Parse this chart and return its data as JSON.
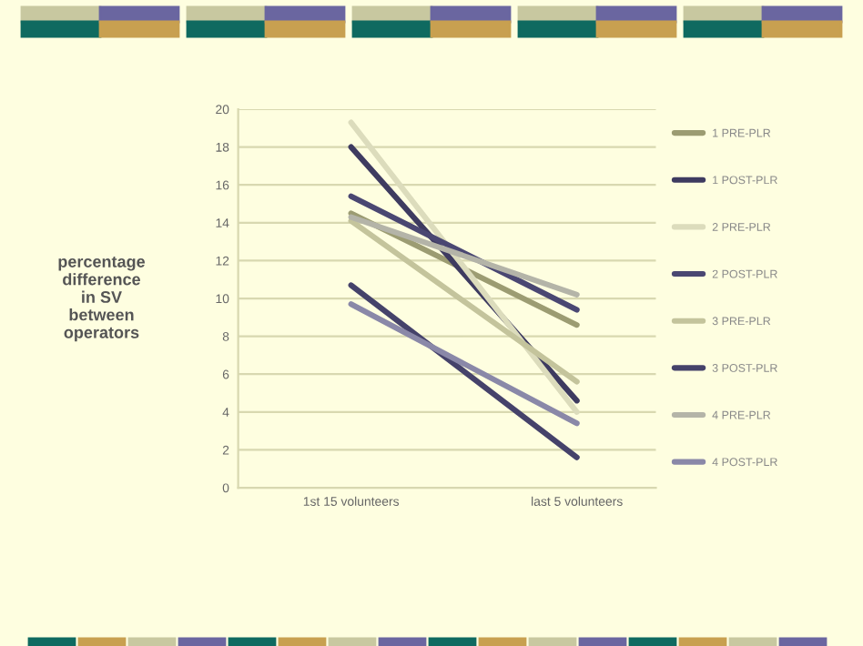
{
  "chart_data": {
    "type": "line",
    "ylabel": "percentage\ndifference\nin SV\nbetween\noperators",
    "categories": [
      "1st 15 volunteers",
      "last 5 volunteers"
    ],
    "series": [
      {
        "name": "1 PRE-PLR",
        "color": "#9c9c72",
        "values": [
          14.5,
          8.6
        ]
      },
      {
        "name": "1 POST-PLR",
        "color": "#3e3b60",
        "values": [
          18.0,
          4.6
        ]
      },
      {
        "name": "2 PRE-PLR",
        "color": "#dcdcbc",
        "values": [
          19.3,
          4.0
        ]
      },
      {
        "name": "2 POST-PLR",
        "color": "#4a4772",
        "values": [
          15.4,
          9.4
        ]
      },
      {
        "name": "3 PRE-PLR",
        "color": "#c4c49c",
        "values": [
          14.1,
          5.6
        ]
      },
      {
        "name": "3 POST-PLR",
        "color": "#45426a",
        "values": [
          10.7,
          1.6
        ]
      },
      {
        "name": "4 PRE-PLR",
        "color": "#b4b4a8",
        "values": [
          14.3,
          10.2
        ]
      },
      {
        "name": "4 POST-PLR",
        "color": "#8a88a8",
        "values": [
          9.7,
          3.4
        ]
      }
    ],
    "ylim": [
      0,
      20
    ],
    "yticks": [
      0,
      2,
      4,
      6,
      8,
      10,
      12,
      14,
      16,
      18,
      20
    ],
    "grid": "y",
    "legend": "right",
    "marker": "none",
    "line_style": "solid"
  }
}
